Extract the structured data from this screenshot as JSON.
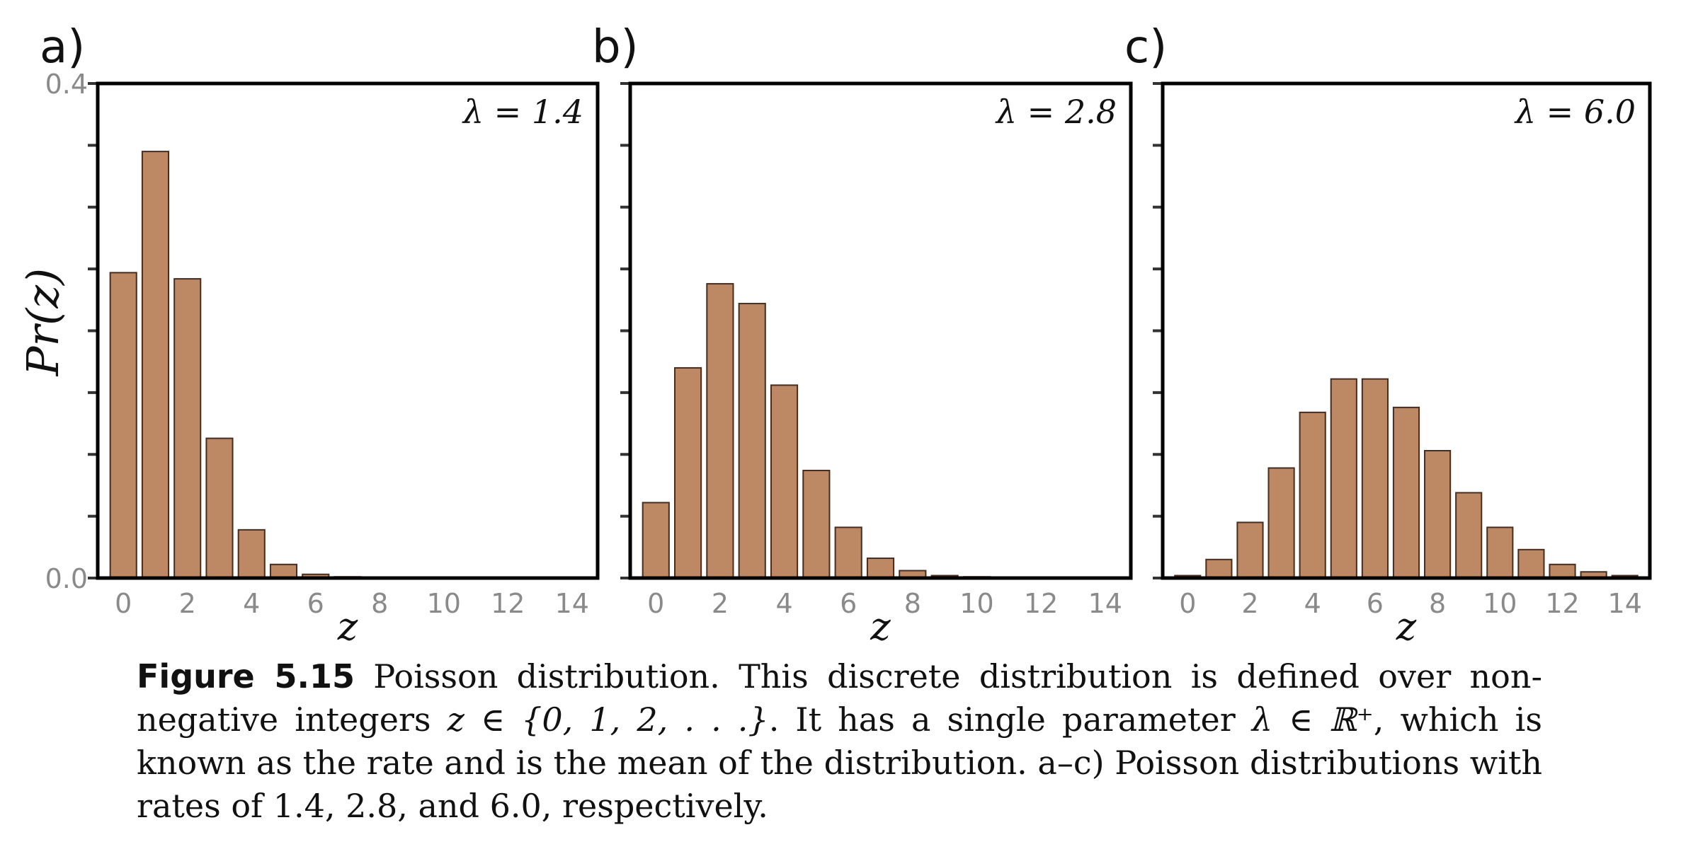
{
  "chart_data": [
    {
      "type": "bar",
      "panel_letter": "a)",
      "lambda_label": "λ = 1.4",
      "ylabel": "Pr(z)",
      "xlabel": "z",
      "ylim": [
        0,
        0.4
      ],
      "y_ticks": [
        "0.0",
        "0.4"
      ],
      "x_ticks": [
        0,
        2,
        4,
        6,
        8,
        10,
        12,
        14
      ],
      "x": [
        0,
        1,
        2,
        3,
        4,
        5,
        6,
        7,
        8,
        9,
        10,
        11,
        12,
        13,
        14
      ],
      "values": [
        0.247,
        0.345,
        0.242,
        0.113,
        0.039,
        0.011,
        0.003,
        0.001,
        0.0,
        0.0,
        0.0,
        0.0,
        0.0,
        0.0,
        0.0
      ],
      "grid": false
    },
    {
      "type": "bar",
      "panel_letter": "b)",
      "lambda_label": "λ = 2.8",
      "xlabel": "z",
      "ylim": [
        0,
        0.4
      ],
      "x_ticks": [
        0,
        2,
        4,
        6,
        8,
        10,
        12,
        14
      ],
      "x": [
        0,
        1,
        2,
        3,
        4,
        5,
        6,
        7,
        8,
        9,
        10,
        11,
        12,
        13,
        14
      ],
      "values": [
        0.061,
        0.17,
        0.238,
        0.222,
        0.156,
        0.087,
        0.041,
        0.016,
        0.006,
        0.002,
        0.001,
        0.0,
        0.0,
        0.0,
        0.0
      ],
      "grid": false
    },
    {
      "type": "bar",
      "panel_letter": "c)",
      "lambda_label": "λ = 6.0",
      "xlabel": "z",
      "ylim": [
        0,
        0.4
      ],
      "x_ticks": [
        0,
        2,
        4,
        6,
        8,
        10,
        12,
        14
      ],
      "x": [
        0,
        1,
        2,
        3,
        4,
        5,
        6,
        7,
        8,
        9,
        10,
        11,
        12,
        13,
        14
      ],
      "values": [
        0.002,
        0.015,
        0.045,
        0.089,
        0.134,
        0.161,
        0.161,
        0.138,
        0.103,
        0.069,
        0.041,
        0.023,
        0.011,
        0.005,
        0.002
      ],
      "grid": false
    }
  ],
  "caption": {
    "figure_label": "Figure 5.15",
    "line1": "Poisson distribution.  This discrete distribution is defined over non-",
    "line2_a": "negative integers ",
    "line2_math": "z ∈ {0, 1, 2, . . .}",
    "line2_b": ".  It has a single parameter ",
    "line2_math2": "λ ∈ ℝ⁺",
    "line2_c": ", which is",
    "line3": "known as the rate and is the mean of the distribution. a–c) Poisson distributions",
    "line4": "with rates of 1.4, 2.8, and 6.0, respectively."
  }
}
